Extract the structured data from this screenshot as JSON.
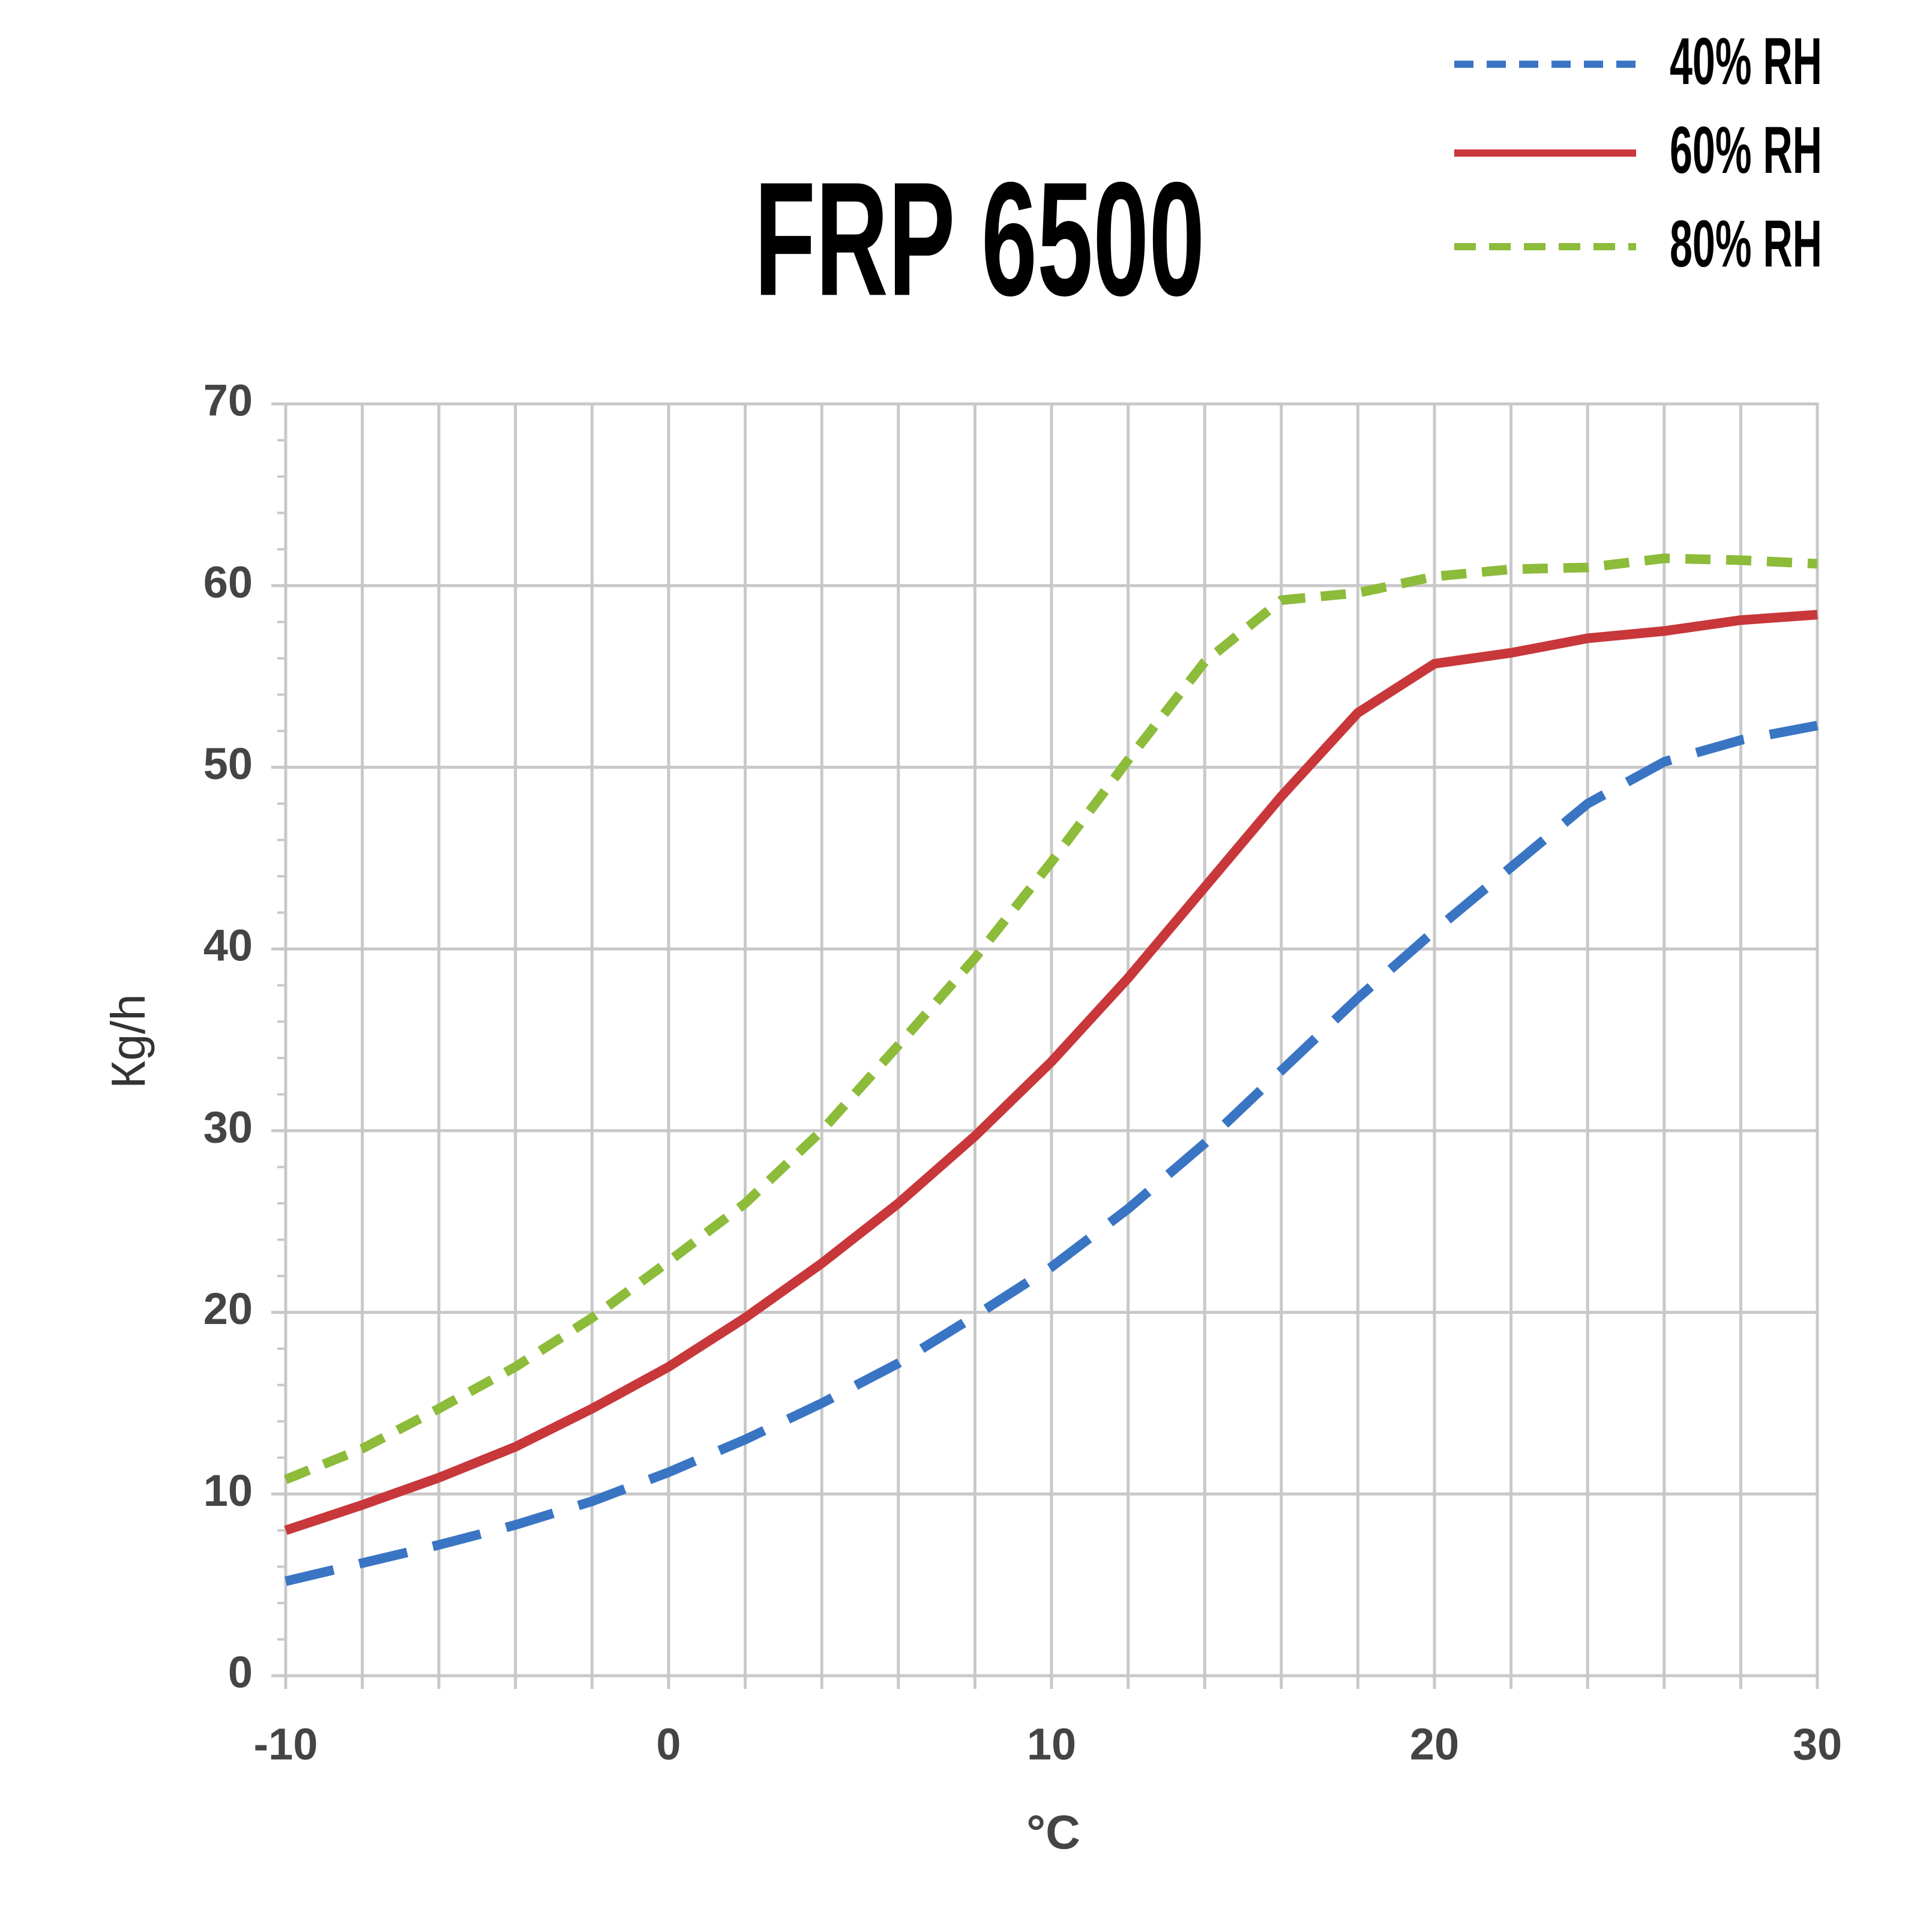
{
  "chart_data": {
    "type": "line",
    "title": "FRP 6500",
    "x_label": "°C",
    "y_label": "Кg/h",
    "x": [
      -10,
      -8,
      -6,
      -4,
      -2,
      0,
      2,
      4,
      6,
      8,
      10,
      12,
      14,
      16,
      18,
      20,
      22,
      24,
      26,
      28,
      30
    ],
    "series": [
      {
        "name": "40% RH",
        "color": "#3a75c4",
        "dash": "dashed",
        "values": [
          5.2,
          6.2,
          7.2,
          8.3,
          9.6,
          11.2,
          13,
          15,
          17.2,
          19.8,
          22.5,
          25.7,
          29.3,
          33.3,
          37.3,
          41,
          44.5,
          48,
          50.3,
          51.5,
          52.3
        ]
      },
      {
        "name": "60% RH",
        "color": "#c8373a",
        "dash": "solid",
        "values": [
          8,
          9.4,
          10.9,
          12.6,
          14.7,
          17,
          19.7,
          22.7,
          26,
          29.7,
          33.8,
          38.4,
          43.4,
          48.4,
          53,
          55.7,
          56.3,
          57.1,
          57.5,
          58.1,
          58.4
        ]
      },
      {
        "name": "80% RH",
        "color": "#8dbb3a",
        "dash": "dotted",
        "values": [
          10.8,
          12.5,
          14.7,
          17,
          19.7,
          22.8,
          26,
          30,
          34.7,
          39.5,
          44.8,
          50.4,
          55.8,
          59.2,
          59.6,
          60.5,
          60.9,
          61,
          61.5,
          61.4,
          61.2
        ]
      }
    ],
    "xlim": [
      -10,
      30
    ],
    "xticks": [
      -10,
      0,
      10,
      20,
      30
    ],
    "x_minor_ticks": [
      -10,
      -8,
      -6,
      -4,
      -2,
      0,
      2,
      4,
      6,
      8,
      10,
      12,
      14,
      16,
      18,
      20,
      22,
      24,
      26,
      28,
      30
    ],
    "ylim": [
      0,
      70
    ],
    "yticks": [
      0,
      10,
      20,
      30,
      40,
      50,
      60,
      70
    ],
    "y_minor_ticks": [
      0,
      2,
      4,
      6,
      8,
      10,
      12,
      14,
      16,
      18,
      20,
      22,
      24,
      26,
      28,
      30,
      32,
      34,
      36,
      38,
      40,
      42,
      44,
      46,
      48,
      50,
      52,
      54,
      56,
      58,
      60,
      62,
      64,
      66,
      68,
      70
    ],
    "grid": true,
    "legend": "upper right"
  }
}
